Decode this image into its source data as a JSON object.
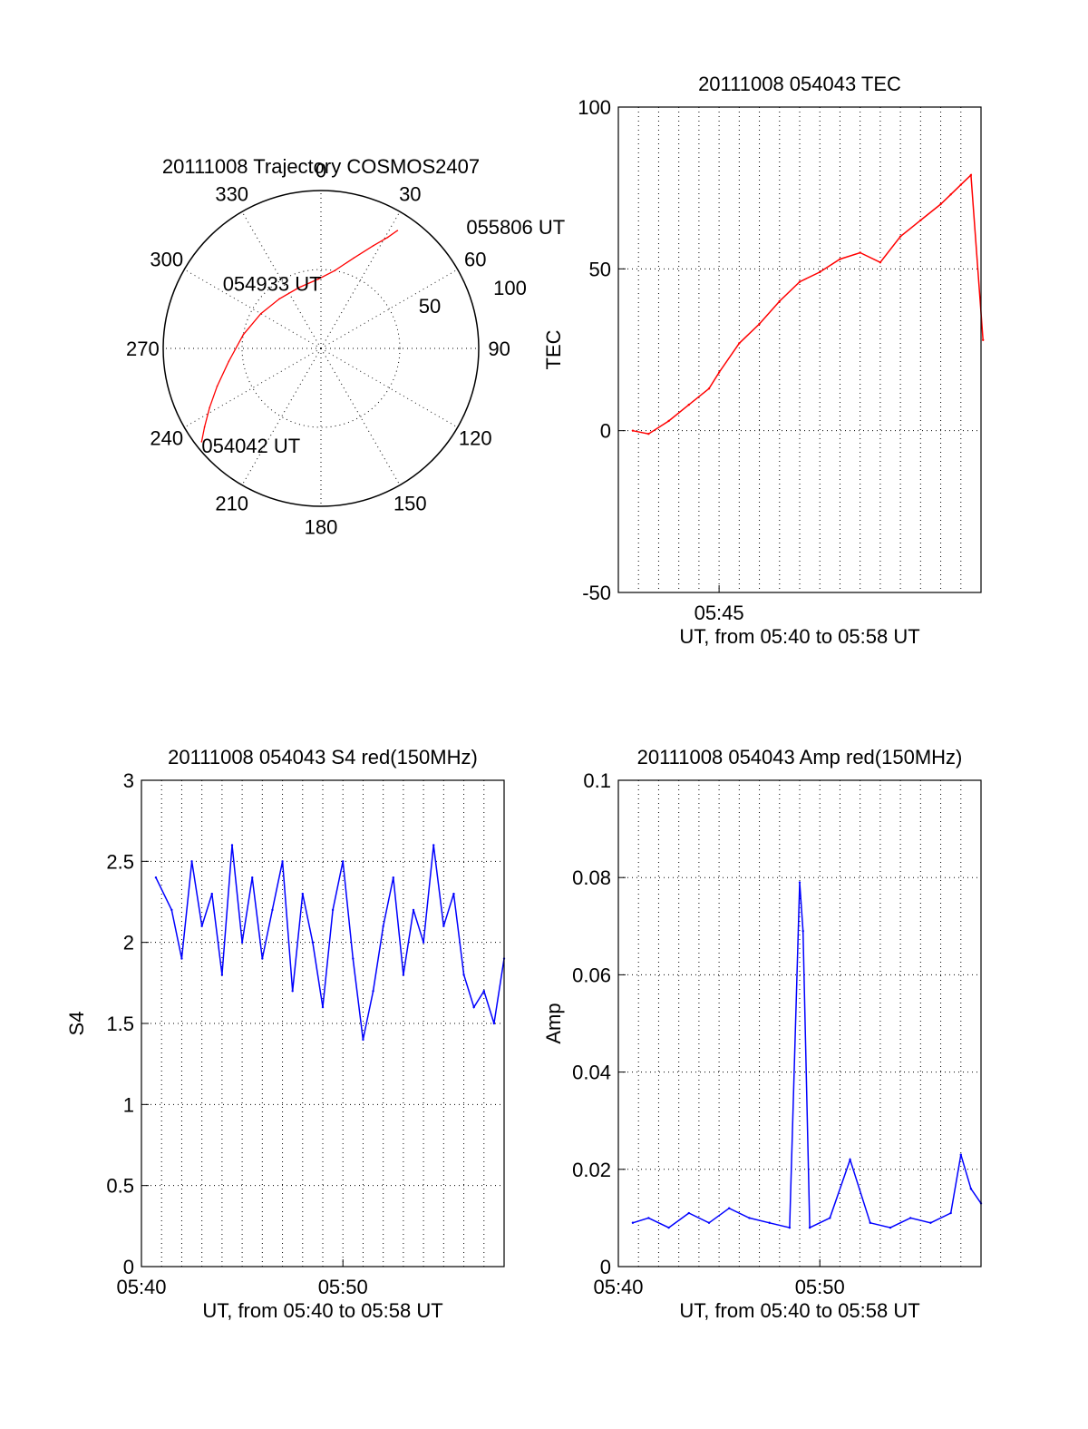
{
  "colors": {
    "trace": "#ff0000",
    "amp_series": "#0000ff",
    "s4_series": "#0000ff",
    "axis": "#000000",
    "grid": "#000000"
  },
  "chart_data": [
    {
      "id": "trajectory",
      "type": "polar",
      "title": "20111008 Trajectory COSMOS2407",
      "azimuth_labels": [
        "0",
        "30",
        "60",
        "90",
        "120",
        "150",
        "180",
        "210",
        "240",
        "270",
        "300",
        "330"
      ],
      "radial_labels": [
        "50",
        "100"
      ],
      "rlim": [
        0,
        100
      ],
      "grid": true,
      "track": {
        "points": [
          {
            "az": 232,
            "r": 96
          },
          {
            "az": 236,
            "r": 89
          },
          {
            "az": 242,
            "r": 80
          },
          {
            "az": 250,
            "r": 70
          },
          {
            "az": 262,
            "r": 59
          },
          {
            "az": 280,
            "r": 50
          },
          {
            "az": 300,
            "r": 44
          },
          {
            "az": 320,
            "r": 41
          },
          {
            "az": 340,
            "r": 41
          },
          {
            "az": 358,
            "r": 44
          },
          {
            "az": 10,
            "r": 50
          },
          {
            "az": 20,
            "r": 61
          },
          {
            "az": 27,
            "r": 73
          },
          {
            "az": 31,
            "r": 82
          },
          {
            "az": 33,
            "r": 89
          }
        ],
        "labels": [
          {
            "text": "054042 UT",
            "az": 232,
            "r": 96
          },
          {
            "text": "054933 UT",
            "az": 300,
            "r": 44
          },
          {
            "text": "055806 UT",
            "az": 33,
            "r": 89
          }
        ]
      }
    },
    {
      "id": "tec",
      "type": "line",
      "title": "20111008 054043 TEC",
      "xlabel": "UT, from 05:40 to 05:58 UT",
      "ylabel": "TEC",
      "xlim": [
        "05:40",
        "05:58"
      ],
      "ylim": [
        -50,
        100
      ],
      "yticks": [
        -50,
        0,
        50,
        100
      ],
      "xticks": [
        {
          "value": "05:45",
          "label": "05:45"
        }
      ],
      "grid": true,
      "series": [
        {
          "x": [
            "05:40:43",
            "05:41:30",
            "05:42:30",
            "05:43:30",
            "05:44:30",
            "05:45:00",
            "05:46:00",
            "05:47:00",
            "05:48:00",
            "05:49:00",
            "05:50:00",
            "05:51:00",
            "05:52:00",
            "05:53:00",
            "05:54:00",
            "05:55:00",
            "05:56:00",
            "05:56:30",
            "05:57:00",
            "05:57:30",
            "05:58:06"
          ],
          "y": [
            0,
            -1,
            3,
            8,
            13,
            18,
            27,
            33,
            40,
            46,
            49,
            53,
            55,
            52,
            60,
            65,
            70,
            73,
            76,
            79,
            28
          ]
        }
      ]
    },
    {
      "id": "s4",
      "type": "line",
      "title": "20111008 054043 S4 red(150MHz)",
      "xlabel": "UT, from 05:40 to 05:58 UT",
      "ylabel": "S4",
      "xlim": [
        "05:40",
        "05:58"
      ],
      "ylim": [
        0,
        3
      ],
      "yticks": [
        0,
        0.5,
        1,
        1.5,
        2,
        2.5,
        3
      ],
      "xticks": [
        {
          "value": "05:40",
          "label": "05:40"
        },
        {
          "value": "05:50",
          "label": "05:50"
        }
      ],
      "grid": true,
      "series": [
        {
          "x": [
            "05:40:43",
            "05:41:30",
            "05:42:00",
            "05:42:30",
            "05:43:00",
            "05:43:30",
            "05:44:00",
            "05:44:30",
            "05:45:00",
            "05:45:30",
            "05:46:00",
            "05:46:30",
            "05:47:00",
            "05:47:30",
            "05:48:00",
            "05:48:30",
            "05:49:00",
            "05:49:30",
            "05:50:00",
            "05:50:30",
            "05:51:00",
            "05:51:30",
            "05:52:00",
            "05:52:30",
            "05:53:00",
            "05:53:30",
            "05:54:00",
            "05:54:30",
            "05:55:00",
            "05:55:30",
            "05:56:00",
            "05:56:30",
            "05:57:00",
            "05:57:30",
            "05:58:00"
          ],
          "y": [
            2.4,
            2.2,
            1.9,
            2.5,
            2.1,
            2.3,
            1.8,
            2.6,
            2.0,
            2.4,
            1.9,
            2.2,
            2.5,
            1.7,
            2.3,
            2.0,
            1.6,
            2.2,
            2.5,
            1.9,
            1.4,
            1.7,
            2.1,
            2.4,
            1.8,
            2.2,
            2.0,
            2.6,
            2.1,
            2.3,
            1.8,
            1.6,
            1.7,
            1.5,
            1.9
          ]
        }
      ]
    },
    {
      "id": "amp",
      "type": "line",
      "title": "20111008 054043 Amp red(150MHz)",
      "xlabel": "UT, from 05:40 to 05:58 UT",
      "ylabel": "Amp",
      "xlim": [
        "05:40",
        "05:58"
      ],
      "ylim": [
        0,
        0.1
      ],
      "yticks": [
        0,
        0.02,
        0.04,
        0.06,
        0.08,
        0.1
      ],
      "xticks": [
        {
          "value": "05:40",
          "label": "05:40"
        },
        {
          "value": "05:50",
          "label": "05:50"
        }
      ],
      "grid": true,
      "series": [
        {
          "x": [
            "05:40:43",
            "05:41:30",
            "05:42:30",
            "05:43:30",
            "05:44:30",
            "05:45:30",
            "05:46:30",
            "05:47:30",
            "05:48:30",
            "05:49:00",
            "05:49:10",
            "05:49:30",
            "05:50:30",
            "05:51:30",
            "05:52:30",
            "05:53:30",
            "05:54:30",
            "05:55:30",
            "05:56:30",
            "05:57:00",
            "05:57:30",
            "05:58:00"
          ],
          "y": [
            0.009,
            0.01,
            0.008,
            0.011,
            0.009,
            0.012,
            0.01,
            0.009,
            0.008,
            0.079,
            0.069,
            0.008,
            0.01,
            0.022,
            0.009,
            0.008,
            0.01,
            0.009,
            0.011,
            0.023,
            0.016,
            0.013
          ]
        }
      ]
    }
  ]
}
